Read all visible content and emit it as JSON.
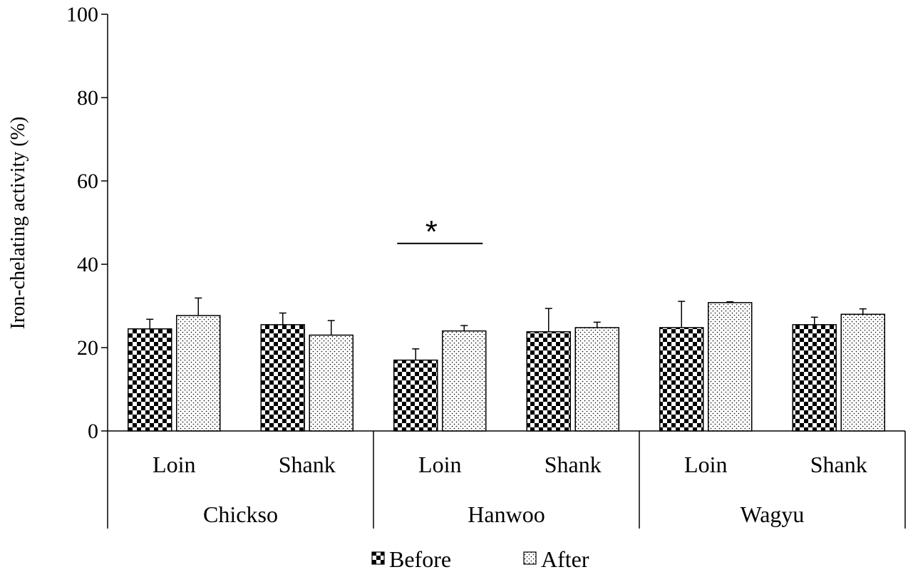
{
  "chart_data": {
    "type": "bar",
    "ylabel": "Iron-chelating activity (%)",
    "ylim": [
      0,
      100
    ],
    "yticks": [
      "0",
      "20",
      "40",
      "60",
      "80",
      "100"
    ],
    "groups": [
      "Chickso",
      "Hanwoo",
      "Wagyu"
    ],
    "categories": [
      "Loin",
      "Shank",
      "Loin",
      "Shank",
      "Loin",
      "Shank"
    ],
    "series": [
      {
        "name": "Before",
        "values": [
          24.5,
          25.5,
          17.0,
          23.8,
          24.8,
          25.5
        ],
        "errors": [
          2.3,
          2.8,
          2.7,
          5.6,
          6.3,
          1.8
        ]
      },
      {
        "name": "After",
        "values": [
          27.7,
          23.0,
          24.0,
          24.8,
          30.8,
          28.0
        ],
        "errors": [
          4.2,
          3.5,
          1.3,
          1.3,
          0.2,
          1.3
        ]
      }
    ],
    "annotations": [
      {
        "text": "*",
        "category_index": 2
      }
    ],
    "legend_position": "bottom-center",
    "grid": false
  },
  "colors": {
    "before_pattern": "checkerboard",
    "after_pattern": "dotted",
    "axis": "#000000"
  }
}
